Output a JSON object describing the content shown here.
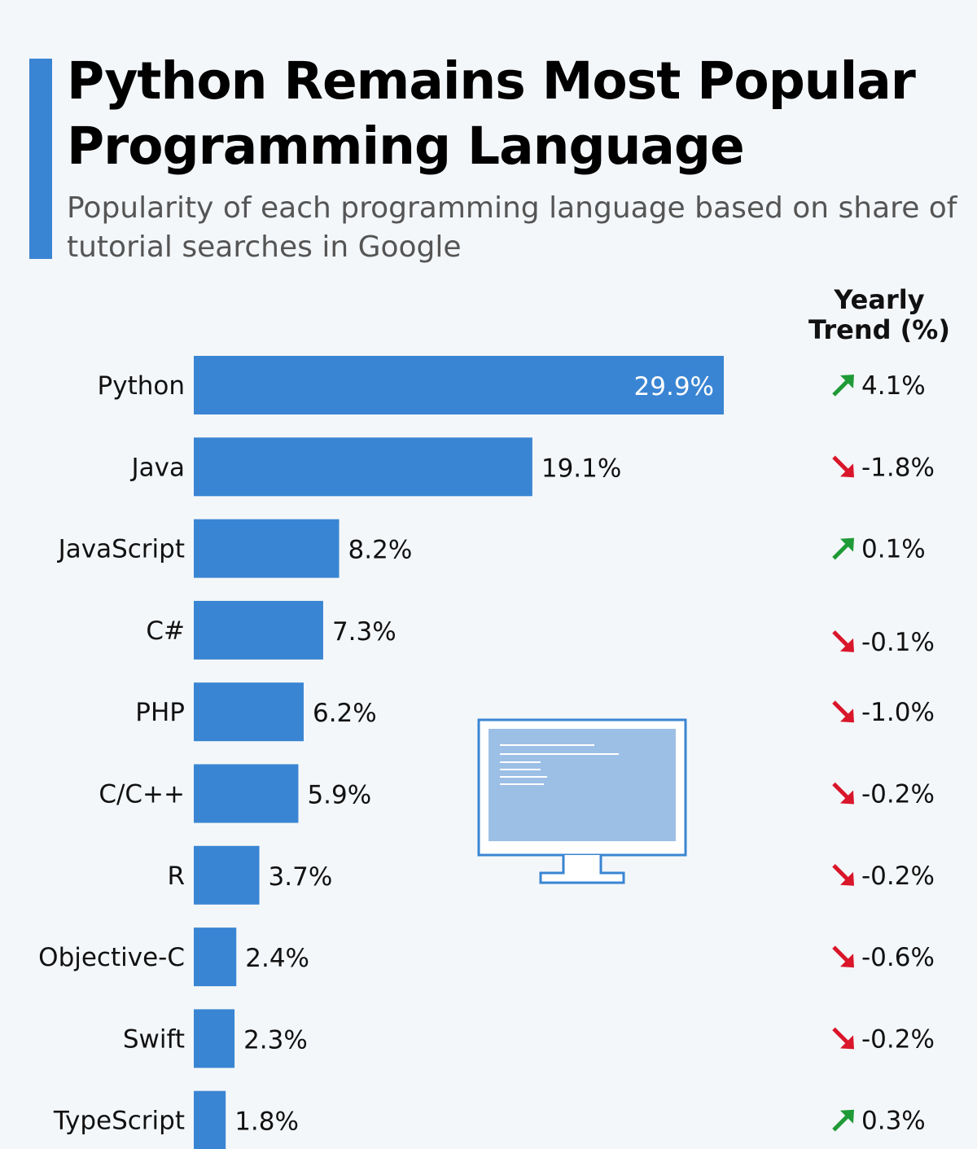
{
  "title": "Python Remains Most Popular Programming Language",
  "subtitle": "Popularity of each programming language based on share of tutorial searches in Google",
  "trend_header": "Yearly Trend (%)",
  "colors": {
    "bar": "#3a85d3",
    "accent": "#3a85d3",
    "trend_up": "#1f9a36",
    "trend_down": "#d9162a",
    "background": "#f4f7fa"
  },
  "chart_data": {
    "type": "bar",
    "orientation": "horizontal",
    "categories": [
      "Python",
      "Java",
      "JavaScript",
      "C#",
      "PHP",
      "C/C++",
      "R",
      "Objective-C",
      "Swift",
      "TypeScript"
    ],
    "values": [
      29.9,
      19.1,
      8.2,
      7.3,
      6.2,
      5.9,
      3.7,
      2.4,
      2.3,
      1.8
    ],
    "value_labels": [
      "29.9%",
      "19.1%",
      "8.2%",
      "7.3%",
      "6.2%",
      "5.9%",
      "3.7%",
      "2.4%",
      "2.3%",
      "1.8%"
    ],
    "unit": "%",
    "xlim": [
      0,
      29.9
    ],
    "grid": false,
    "trend": {
      "values": [
        4.1,
        -1.8,
        0.1,
        -0.1,
        -1.0,
        -0.2,
        -0.2,
        -0.6,
        -0.2,
        0.3
      ],
      "labels": [
        "4.1%",
        "-1.8%",
        "0.1%",
        "-0.1%",
        "-1.0%",
        "-0.2%",
        "-0.2%",
        "-0.6%",
        "-0.2%",
        "0.3%"
      ],
      "directions": [
        "up",
        "down",
        "up",
        "down",
        "down",
        "down",
        "down",
        "down",
        "down",
        "up"
      ]
    }
  },
  "illustration": {
    "icon": "computer-monitor-icon"
  }
}
